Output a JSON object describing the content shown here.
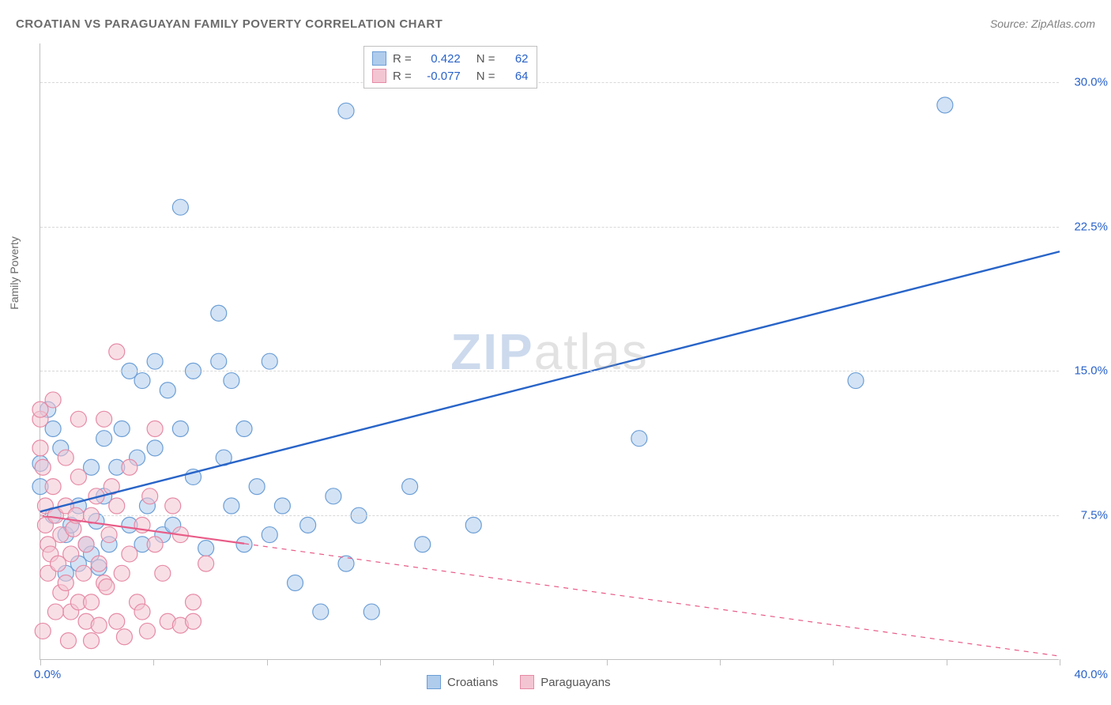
{
  "title": "CROATIAN VS PARAGUAYAN FAMILY POVERTY CORRELATION CHART",
  "source_prefix": "Source: ",
  "source_name": "ZipAtlas.com",
  "y_axis_label": "Family Poverty",
  "watermark_zip": "ZIP",
  "watermark_atlas": "atlas",
  "chart": {
    "type": "scatter",
    "xlim": [
      0,
      40
    ],
    "ylim": [
      0,
      32
    ],
    "x_min_label": "0.0%",
    "x_max_label": "40.0%",
    "y_ticks": [
      7.5,
      15.0,
      22.5,
      30.0
    ],
    "y_tick_labels": [
      "7.5%",
      "15.0%",
      "22.5%",
      "30.0%"
    ],
    "x_ticks": [
      0,
      4.44,
      8.89,
      13.33,
      17.78,
      22.22,
      26.67,
      31.11,
      35.56,
      40
    ],
    "grid_color": "#d8d8d8",
    "background_color": "#ffffff",
    "marker_radius": 10,
    "marker_stroke_width": 1.2,
    "series": [
      {
        "name": "Croatians",
        "R": "0.422",
        "N": "62",
        "fill": "#afccec",
        "stroke": "#6c9ed6",
        "line_color": "#2864c8",
        "line_width": 2.4,
        "trend": {
          "x1": 0,
          "y1": 7.7,
          "x2": 40,
          "y2": 21.2,
          "solid_until_x": 40
        },
        "points": [
          [
            0.0,
            10.2
          ],
          [
            0.0,
            9.0
          ],
          [
            0.3,
            13.0
          ],
          [
            0.5,
            12.0
          ],
          [
            0.5,
            7.5
          ],
          [
            0.8,
            11.0
          ],
          [
            1.0,
            6.5
          ],
          [
            1.2,
            7.0
          ],
          [
            1.5,
            8.0
          ],
          [
            1.5,
            5.0
          ],
          [
            1.8,
            6.0
          ],
          [
            2.0,
            5.5
          ],
          [
            2.0,
            10.0
          ],
          [
            2.2,
            7.2
          ],
          [
            2.5,
            8.5
          ],
          [
            2.5,
            11.5
          ],
          [
            2.7,
            6.0
          ],
          [
            3.0,
            10.0
          ],
          [
            3.2,
            12.0
          ],
          [
            3.5,
            15.0
          ],
          [
            3.5,
            7.0
          ],
          [
            3.8,
            10.5
          ],
          [
            4.0,
            6.0
          ],
          [
            4.0,
            14.5
          ],
          [
            4.2,
            8.0
          ],
          [
            4.5,
            11.0
          ],
          [
            4.5,
            15.5
          ],
          [
            4.8,
            6.5
          ],
          [
            5.0,
            14.0
          ],
          [
            5.2,
            7.0
          ],
          [
            5.5,
            12.0
          ],
          [
            5.5,
            23.5
          ],
          [
            6.0,
            9.5
          ],
          [
            6.0,
            15.0
          ],
          [
            6.5,
            5.8
          ],
          [
            7.0,
            18.0
          ],
          [
            7.0,
            15.5
          ],
          [
            7.2,
            10.5
          ],
          [
            7.5,
            8.0
          ],
          [
            7.5,
            14.5
          ],
          [
            8.0,
            6.0
          ],
          [
            8.0,
            12.0
          ],
          [
            8.5,
            9.0
          ],
          [
            9.0,
            6.5
          ],
          [
            9.0,
            15.5
          ],
          [
            9.5,
            8.0
          ],
          [
            10.0,
            4.0
          ],
          [
            10.5,
            7.0
          ],
          [
            11.0,
            2.5
          ],
          [
            11.5,
            8.5
          ],
          [
            12.0,
            28.5
          ],
          [
            12.0,
            5.0
          ],
          [
            12.5,
            7.5
          ],
          [
            13.0,
            2.5
          ],
          [
            14.5,
            9.0
          ],
          [
            15.0,
            6.0
          ],
          [
            17.0,
            7.0
          ],
          [
            23.5,
            11.5
          ],
          [
            32.0,
            14.5
          ],
          [
            35.5,
            28.8
          ],
          [
            1.0,
            4.5
          ],
          [
            2.3,
            4.8
          ]
        ]
      },
      {
        "name": "Paraguayans",
        "R": "-0.077",
        "N": "64",
        "fill": "#f3c5d2",
        "stroke": "#e68aa5",
        "line_color": "#e85b87",
        "line_width": 2.2,
        "trend": {
          "x1": 0,
          "y1": 7.5,
          "x2": 40,
          "y2": 0.2,
          "solid_until_x": 8
        },
        "points": [
          [
            0.0,
            11.0
          ],
          [
            0.0,
            12.5
          ],
          [
            0.0,
            13.0
          ],
          [
            0.1,
            10.0
          ],
          [
            0.2,
            8.0
          ],
          [
            0.2,
            7.0
          ],
          [
            0.3,
            6.0
          ],
          [
            0.3,
            4.5
          ],
          [
            0.4,
            5.5
          ],
          [
            0.5,
            13.5
          ],
          [
            0.5,
            9.0
          ],
          [
            0.6,
            7.5
          ],
          [
            0.7,
            5.0
          ],
          [
            0.8,
            6.5
          ],
          [
            0.8,
            3.5
          ],
          [
            1.0,
            8.0
          ],
          [
            1.0,
            4.0
          ],
          [
            1.0,
            10.5
          ],
          [
            1.2,
            2.5
          ],
          [
            1.2,
            5.5
          ],
          [
            1.3,
            6.8
          ],
          [
            1.4,
            7.5
          ],
          [
            1.5,
            3.0
          ],
          [
            1.5,
            9.5
          ],
          [
            1.5,
            12.5
          ],
          [
            1.7,
            4.5
          ],
          [
            1.8,
            2.0
          ],
          [
            1.8,
            6.0
          ],
          [
            2.0,
            3.0
          ],
          [
            2.0,
            7.5
          ],
          [
            2.0,
            1.0
          ],
          [
            2.2,
            8.5
          ],
          [
            2.3,
            5.0
          ],
          [
            2.3,
            1.8
          ],
          [
            2.5,
            4.0
          ],
          [
            2.5,
            12.5
          ],
          [
            2.7,
            6.5
          ],
          [
            2.8,
            9.0
          ],
          [
            3.0,
            2.0
          ],
          [
            3.0,
            16.0
          ],
          [
            3.0,
            8.0
          ],
          [
            3.2,
            4.5
          ],
          [
            3.3,
            1.2
          ],
          [
            3.5,
            5.5
          ],
          [
            3.5,
            10.0
          ],
          [
            3.8,
            3.0
          ],
          [
            4.0,
            7.0
          ],
          [
            4.0,
            2.5
          ],
          [
            4.2,
            1.5
          ],
          [
            4.5,
            6.0
          ],
          [
            4.5,
            12.0
          ],
          [
            4.8,
            4.5
          ],
          [
            5.0,
            2.0
          ],
          [
            5.2,
            8.0
          ],
          [
            5.5,
            1.8
          ],
          [
            5.5,
            6.5
          ],
          [
            6.0,
            3.0
          ],
          [
            6.0,
            2.0
          ],
          [
            6.5,
            5.0
          ],
          [
            0.1,
            1.5
          ],
          [
            1.1,
            1.0
          ],
          [
            0.6,
            2.5
          ],
          [
            2.6,
            3.8
          ],
          [
            4.3,
            8.5
          ]
        ]
      }
    ]
  },
  "legend_top": {
    "r_label": "R =",
    "n_label": "N ="
  },
  "legend_bottom": {
    "label_a": "Croatians",
    "label_b": "Paraguayans"
  },
  "colors": {
    "title": "#6b6b6b",
    "axis_text": "#2962c9",
    "body_text": "#555555"
  }
}
